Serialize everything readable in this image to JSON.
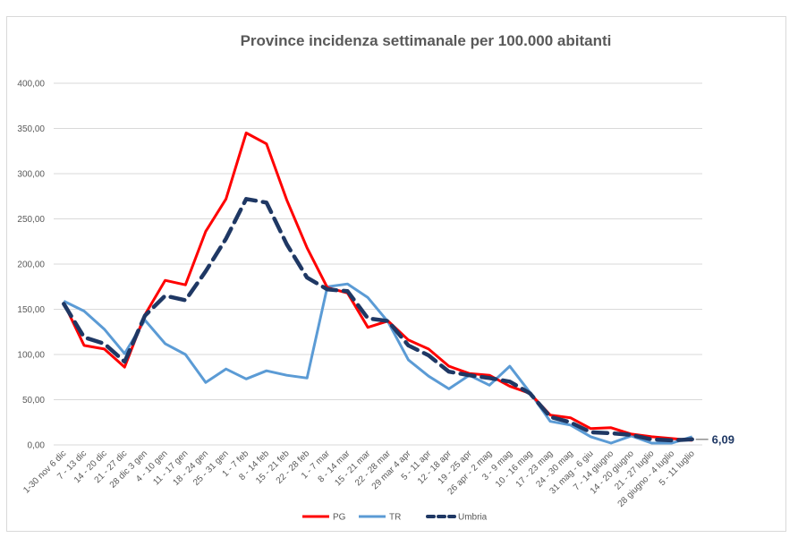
{
  "chart_data": {
    "type": "line",
    "title": "Province incidenza settimanale per 100.000 abitanti",
    "xlabel": "",
    "ylabel": "",
    "ylim": [
      0,
      400
    ],
    "yticks": [
      "0,00",
      "50,00",
      "100,00",
      "150,00",
      "200,00",
      "250,00",
      "300,00",
      "350,00",
      "400,00"
    ],
    "ytick_values": [
      0,
      50,
      100,
      150,
      200,
      250,
      300,
      350,
      400
    ],
    "grid": true,
    "legend_position": "bottom",
    "categories": [
      "1-30 nov 6 dic",
      "7 - 13 dic",
      "14 - 20 dic",
      "21 - 27 dic",
      "28 dic 3 gen",
      "4 - 10 gen",
      "11 - 17 gen",
      "18 - 24 gen",
      "25 - 31 gen",
      "1 - 7 feb",
      "8 - 14 feb",
      "15 - 21 feb",
      "22 - 28 feb",
      "1 - 7 mar",
      "8 - 14 mar",
      "15 - 21 mar",
      "22 - 28 mar",
      "29 mar 4 apr",
      "5 - 11 apr",
      "12 - 18 apr",
      "19 - 25 apr",
      "26 apr - 2 mag",
      "3 - 9 mag",
      "10 - 16 mag",
      "17 - 23 mag",
      "24 - 30 mag",
      "31 mag - 6 giu",
      "7 - 14 giugno",
      "14 - 20 giugno",
      "21 - 27 luglio",
      "28 giugno - 4 luglio",
      "5 - 11 luglio"
    ],
    "series": [
      {
        "name": "PG",
        "color": "#ff0000",
        "style": "solid",
        "values": [
          157,
          110,
          106,
          86,
          144,
          182,
          177,
          236,
          272,
          345,
          333,
          271,
          218,
          174,
          168,
          130,
          137,
          116,
          106,
          87,
          79,
          77,
          65,
          57,
          33,
          30,
          18,
          19,
          12,
          9,
          7,
          5
        ]
      },
      {
        "name": "TR",
        "color": "#5b9bd5",
        "style": "solid",
        "values": [
          159,
          148,
          128,
          101,
          138,
          112,
          100,
          69,
          84,
          73,
          82,
          77,
          74,
          175,
          178,
          163,
          136,
          94,
          76,
          62,
          77,
          66,
          87,
          58,
          26,
          22,
          9,
          2,
          10,
          2,
          2,
          9
        ]
      },
      {
        "name": "Umbria",
        "color": "#1f3864",
        "style": "dashed",
        "values": [
          156,
          119,
          112,
          92,
          143,
          165,
          160,
          192,
          228,
          272,
          268,
          222,
          185,
          172,
          170,
          140,
          137,
          110,
          99,
          81,
          77,
          74,
          70,
          57,
          31,
          25,
          14,
          13,
          11,
          6,
          5,
          6.09
        ]
      }
    ],
    "annotations": [
      {
        "text": "6,09",
        "series": "Umbria",
        "index": 31
      }
    ]
  }
}
